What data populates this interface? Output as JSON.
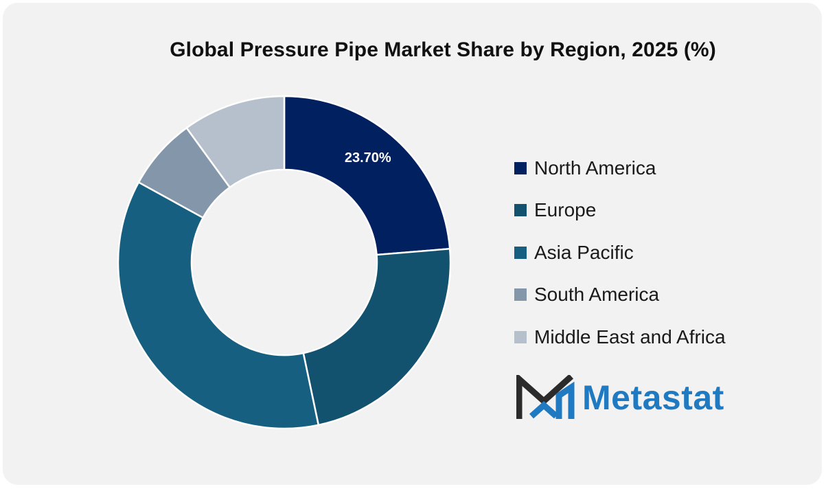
{
  "chart_data": {
    "type": "pie",
    "title": "Global Pressure Pipe Market Share by Region, 2025 (%)",
    "categories": [
      "North America",
      "Europe",
      "Asia Pacific",
      "South America",
      "Middle East and Africa"
    ],
    "values": [
      23.7,
      23.0,
      36.3,
      7.0,
      10.0
    ],
    "colors": [
      "#012060",
      "#13526e",
      "#175f80",
      "#8497aa",
      "#b5c0cc"
    ],
    "data_labels": [
      "23.70%",
      "",
      "",
      "",
      ""
    ],
    "donut": true,
    "legend_position": "right"
  },
  "logo": {
    "text": "Metastat",
    "icon": "metastat-m-logo"
  }
}
